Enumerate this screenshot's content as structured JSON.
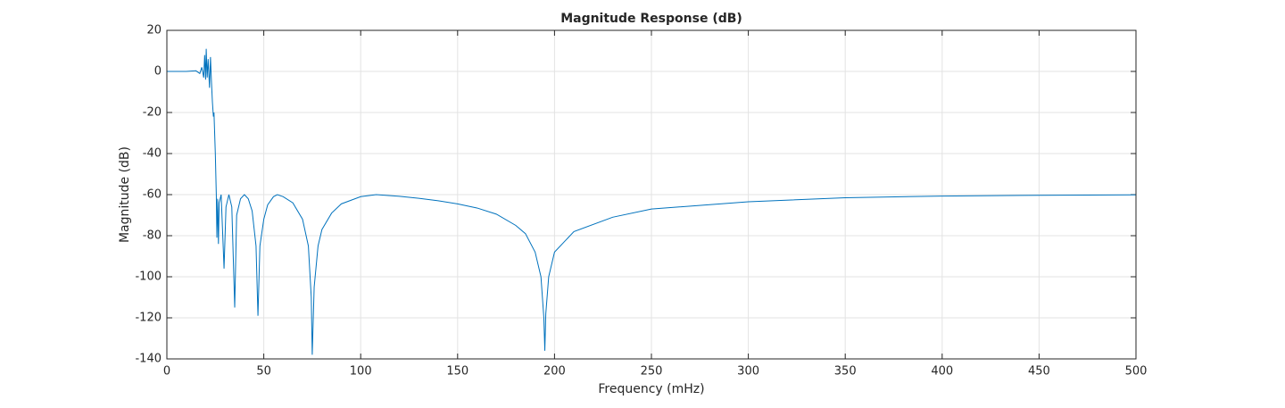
{
  "chart_data": {
    "type": "line",
    "title": "Magnitude Response (dB)",
    "xlabel": "Frequency (mHz)",
    "ylabel": "Magnitude (dB)",
    "x": [
      0,
      5,
      10,
      15,
      17,
      18,
      19,
      19.5,
      20,
      20.3,
      20.8,
      21.3,
      22,
      22.5,
      23,
      23.5,
      24,
      24.3,
      25,
      25.5,
      25.8,
      26.2,
      26.6,
      27,
      28,
      29.5,
      30.5,
      32,
      33.5,
      35,
      36,
      38,
      40,
      42,
      44,
      46,
      47,
      48,
      50,
      52,
      55,
      57,
      60,
      65,
      70,
      73,
      74.5,
      75,
      76,
      78,
      80,
      85,
      90,
      100,
      108,
      120,
      130,
      140,
      150,
      160,
      170,
      180,
      185,
      190,
      193,
      194.5,
      195,
      195.5,
      197,
      200,
      210,
      230,
      250,
      300,
      350,
      400,
      450,
      500
    ],
    "series": [
      {
        "name": "Magnitude",
        "color": "#0072bd",
        "values": [
          0,
          0,
          0,
          0.3,
          -1,
          2,
          -3,
          8,
          -4,
          11,
          -3,
          6,
          -8,
          7,
          -5,
          -15,
          -22,
          -20,
          -40,
          -60,
          -81,
          -62,
          -84,
          -64,
          -60,
          -96,
          -66,
          -60,
          -66,
          -115,
          -70,
          -62,
          -60,
          -62,
          -68,
          -85,
          -119,
          -85,
          -72,
          -65,
          -61,
          -60,
          -61,
          -64,
          -72,
          -85,
          -110,
          -138,
          -105,
          -85,
          -77,
          -69,
          -64.5,
          -61,
          -60,
          -60.8,
          -61.8,
          -63,
          -64.5,
          -66.5,
          -69.5,
          -75,
          -79,
          -88,
          -100,
          -120,
          -136,
          -118,
          -100,
          -88,
          -78,
          -71,
          -67,
          -63.5,
          -61.5,
          -60.7,
          -60.3,
          -60.1
        ]
      }
    ],
    "xlim": [
      0,
      500
    ],
    "xticks": [
      0,
      50,
      100,
      150,
      200,
      250,
      300,
      350,
      400,
      450,
      500
    ],
    "ylim": [
      -140,
      20
    ],
    "yticks": [
      -140,
      -120,
      -100,
      -80,
      -60,
      -40,
      -20,
      0,
      20
    ],
    "grid": true
  }
}
